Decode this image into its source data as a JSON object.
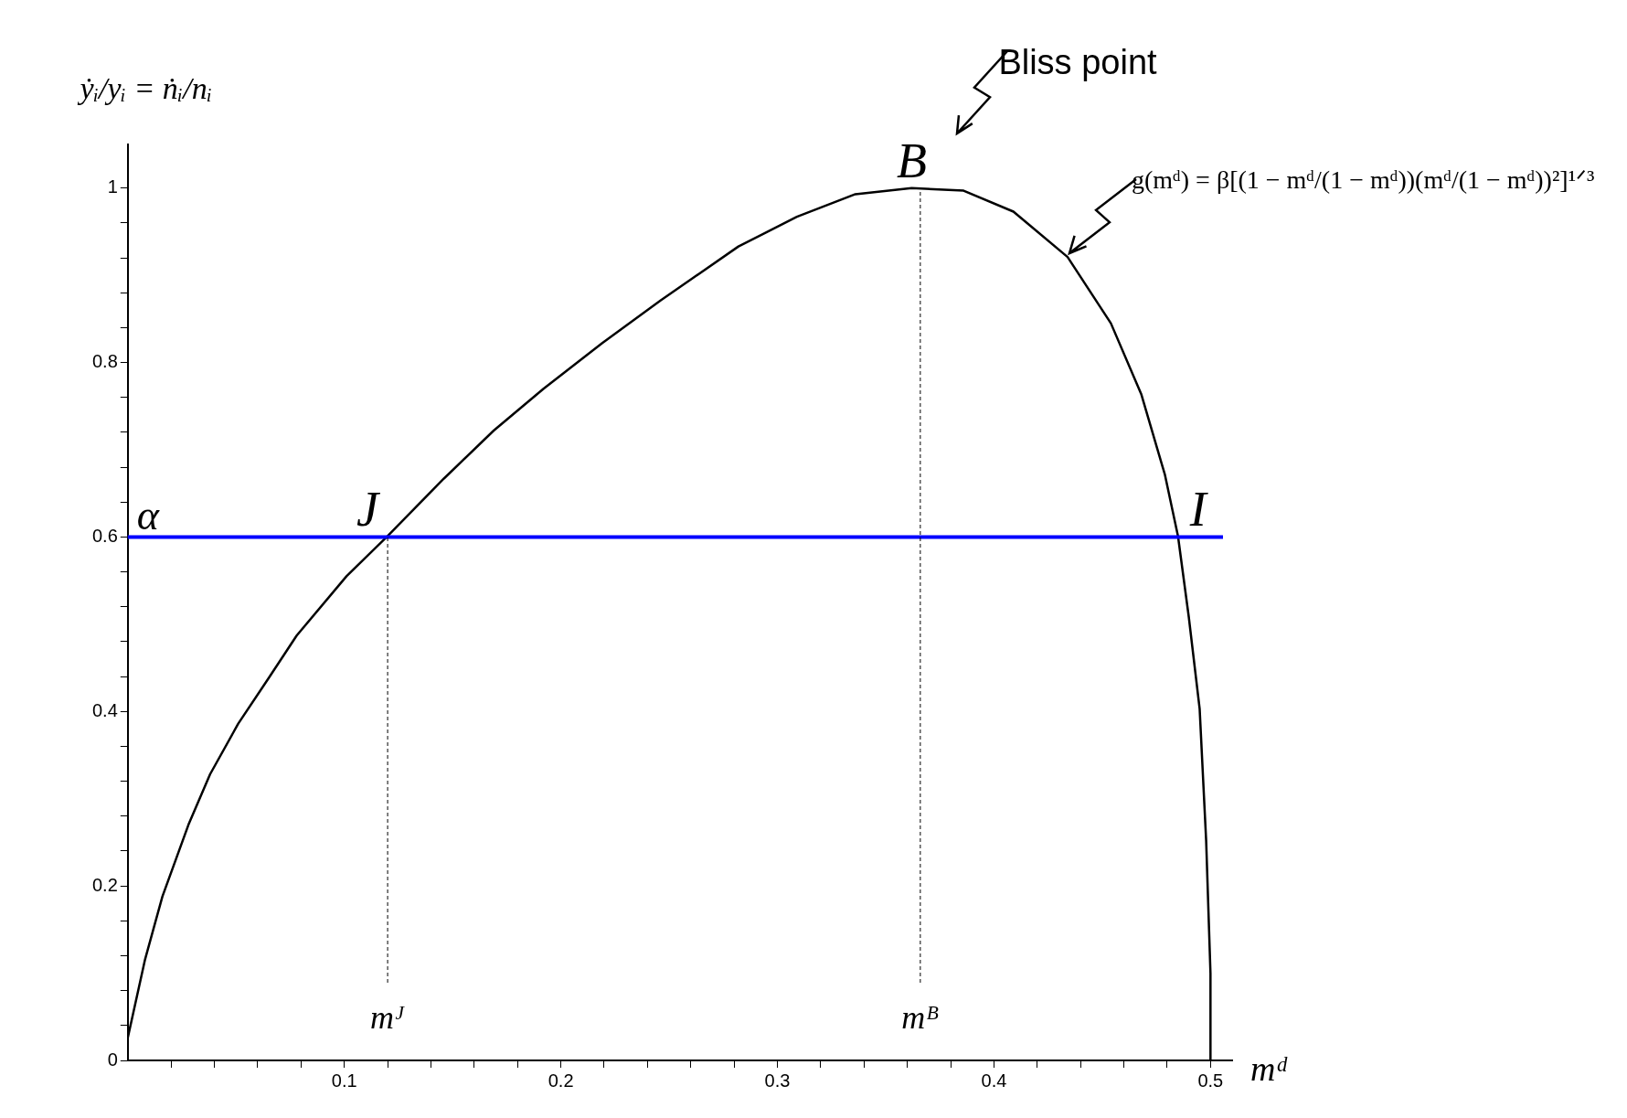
{
  "chart_data": {
    "type": "line",
    "xlabel": "mᵈ",
    "ylabel": "ẏᵢ/yᵢ = ṅᵢ/nᵢ",
    "xlim": [
      0,
      0.51
    ],
    "ylim": [
      0,
      1.05
    ],
    "xticks": [
      {
        "value": 0.02,
        "label": null
      },
      {
        "value": 0.04,
        "label": null
      },
      {
        "value": 0.06,
        "label": null
      },
      {
        "value": 0.08,
        "label": null
      },
      0.1,
      {
        "value": 0.12,
        "label": null
      },
      {
        "value": 0.14,
        "label": null
      },
      {
        "value": 0.16,
        "label": null
      },
      {
        "value": 0.18,
        "label": null
      },
      0.2,
      {
        "value": 0.22,
        "label": null
      },
      {
        "value": 0.24,
        "label": null
      },
      {
        "value": 0.26,
        "label": null
      },
      {
        "value": 0.28,
        "label": null
      },
      0.3,
      {
        "value": 0.32,
        "label": null
      },
      {
        "value": 0.34,
        "label": null
      },
      {
        "value": 0.36,
        "label": null
      },
      {
        "value": 0.38,
        "label": null
      },
      0.4,
      {
        "value": 0.42,
        "label": null
      },
      {
        "value": 0.44,
        "label": null
      },
      {
        "value": 0.46,
        "label": null
      },
      {
        "value": 0.48,
        "label": null
      },
      0.5
    ],
    "yticks": [
      0,
      {
        "value": 0.04,
        "label": null
      },
      {
        "value": 0.08,
        "label": null
      },
      {
        "value": 0.12,
        "label": null
      },
      {
        "value": 0.16,
        "label": null
      },
      0.2,
      {
        "value": 0.24,
        "label": null
      },
      {
        "value": 0.28,
        "label": null
      },
      {
        "value": 0.32,
        "label": null
      },
      {
        "value": 0.36,
        "label": null
      },
      0.4,
      {
        "value": 0.44,
        "label": null
      },
      {
        "value": 0.48,
        "label": null
      },
      {
        "value": 0.52,
        "label": null
      },
      {
        "value": 0.56,
        "label": null
      },
      0.6,
      {
        "value": 0.64,
        "label": null
      },
      {
        "value": 0.68,
        "label": null
      },
      {
        "value": 0.72,
        "label": null
      },
      {
        "value": 0.76,
        "label": null
      },
      0.8,
      {
        "value": 0.84,
        "label": null
      },
      {
        "value": 0.88,
        "label": null
      },
      {
        "value": 0.92,
        "label": null
      },
      {
        "value": 0.96,
        "label": null
      },
      1
    ],
    "legend": false,
    "grid": false,
    "marker": "none",
    "series": [
      {
        "color": "#000000",
        "x": [
          0,
          0.008,
          0.016,
          0.028,
          0.038,
          0.051,
          0.065,
          0.078,
          0.101,
          0.12,
          0.146,
          0.169,
          0.192,
          0.219,
          0.246,
          0.282,
          0.309,
          0.336,
          0.362,
          0.386,
          0.409,
          0.434,
          0.454,
          0.468,
          0.479,
          0.485,
          0.49,
          0.495,
          0.498,
          0.5,
          0.5
        ],
        "values": [
          0.026,
          0.116,
          0.188,
          0.27,
          0.328,
          0.386,
          0.438,
          0.487,
          0.555,
          0.601,
          0.667,
          0.722,
          0.77,
          0.822,
          0.871,
          0.933,
          0.967,
          0.993,
          1.0,
          0.997,
          0.973,
          0.921,
          0.845,
          0.764,
          0.671,
          0.601,
          0.508,
          0.403,
          0.252,
          0.1,
          0
        ]
      }
    ],
    "ref_lines": [
      {
        "axis": "y",
        "value": 0.6,
        "label": "α",
        "color": "#0000ff",
        "line_style": "solid"
      },
      {
        "axis": "x",
        "value": 0.12,
        "label": "mᴶ",
        "color": "#000000",
        "line_style": "dashed"
      },
      {
        "axis": "x",
        "value": 0.366,
        "label": "mᴮ",
        "color": "#000000",
        "line_style": "dashed"
      }
    ],
    "annotations": [
      {
        "text": "J",
        "x": 0.12,
        "y": 0.6
      },
      {
        "text": "B",
        "x": 0.362,
        "y": 1.0
      },
      {
        "text": "I",
        "x": 0.485,
        "y": 0.6
      },
      {
        "text": "g(mᵈ) = β[(1 − mᵈ/(1 − mᵈ))(mᵈ/(1 − mᵈ))²]¹ᐟ³",
        "x": 0.434,
        "y": 0.921
      },
      "Bliss point"
    ]
  }
}
